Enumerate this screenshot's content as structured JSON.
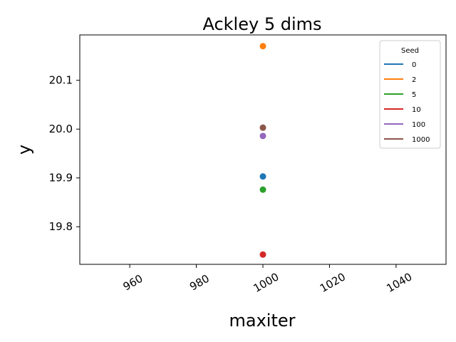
{
  "chart_data": {
    "type": "scatter",
    "title": "Ackley 5 dims",
    "xlabel": "maxiter",
    "ylabel": "y",
    "xlim": [
      945,
      1055
    ],
    "ylim": [
      19.723,
      20.193
    ],
    "xticks": [
      960,
      980,
      1000,
      1020,
      1040
    ],
    "xtick_labels": [
      "960",
      "980",
      "1000",
      "1020",
      "1040"
    ],
    "yticks": [
      19.8,
      19.9,
      20.0,
      20.1
    ],
    "ytick_labels": [
      "19.8",
      "19.9",
      "20.0",
      "20.1"
    ],
    "grid": false,
    "legend": {
      "title": "Seed",
      "position": "top-right"
    },
    "series": [
      {
        "name": "0",
        "color": "#1f77b4",
        "x": [
          1000
        ],
        "y": [
          19.903
        ]
      },
      {
        "name": "2",
        "color": "#ff7f0e",
        "x": [
          1000
        ],
        "y": [
          20.17
        ]
      },
      {
        "name": "5",
        "color": "#2ca02c",
        "x": [
          1000
        ],
        "y": [
          19.876
        ]
      },
      {
        "name": "10",
        "color": "#d62728",
        "x": [
          1000
        ],
        "y": [
          19.743
        ]
      },
      {
        "name": "100",
        "color": "#9467bd",
        "x": [
          1000
        ],
        "y": [
          19.986
        ]
      },
      {
        "name": "1000",
        "color": "#8c564b",
        "x": [
          1000
        ],
        "y": [
          20.003
        ]
      }
    ]
  }
}
